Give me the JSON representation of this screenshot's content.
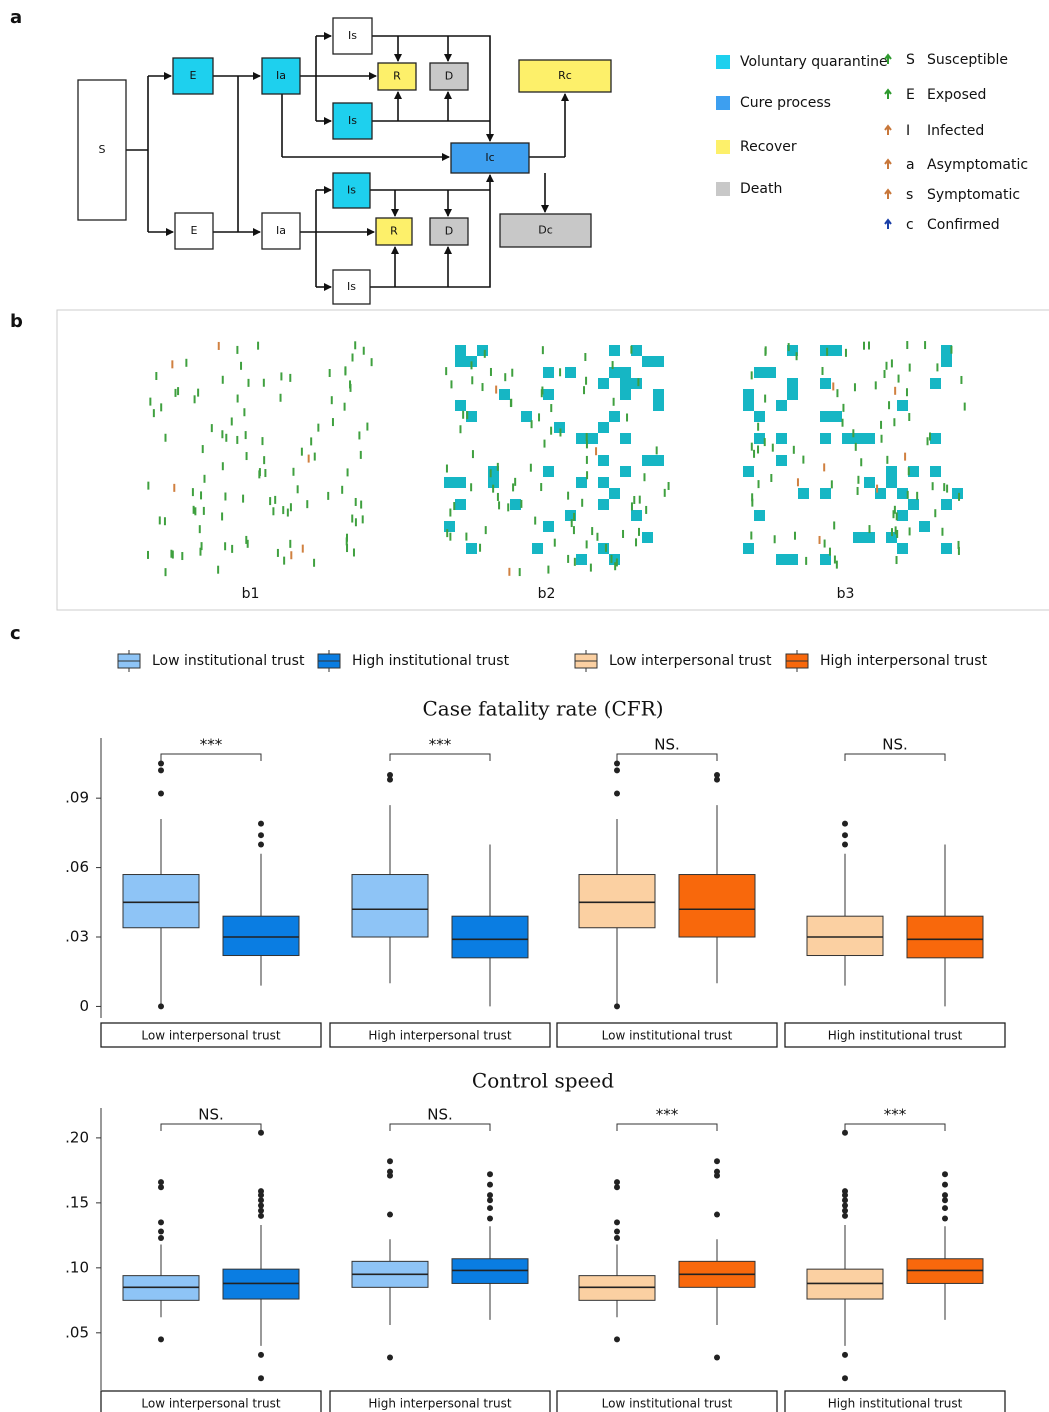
{
  "panel_labels": [
    "a",
    "b",
    "c"
  ],
  "diagram": {
    "nodes": [
      "S",
      "E",
      "E",
      "Ia",
      "Ia",
      "Is",
      "R",
      "D",
      "Is",
      "Ic",
      "Rc",
      "Dc",
      "Is",
      "R",
      "D",
      "Is"
    ],
    "legend": [
      {
        "label": "Voluntary quarantine",
        "color": "#1ed0ee"
      },
      {
        "label": "Cure process",
        "color": "#3d9ff0"
      },
      {
        "label": "Recover",
        "color": "#fdf06a"
      },
      {
        "label": "Death",
        "color": "#c8c8c8"
      }
    ],
    "symbols": [
      {
        "letter": "S",
        "label": "Susceptible",
        "color": "#2e9a2e"
      },
      {
        "letter": "E",
        "label": "Exposed",
        "color": "#2e9a2e"
      },
      {
        "letter": "I",
        "label": "Infected",
        "color": "#c8773a"
      },
      {
        "letter": "a",
        "label": "Asymptomatic",
        "color": "#c8773a"
      },
      {
        "letter": "s",
        "label": "Symptomatic",
        "color": "#c8773a"
      },
      {
        "letter": "c",
        "label": "Confirmed",
        "color": "#1a3fa8"
      }
    ]
  },
  "simulation": {
    "labels": [
      "b1",
      "b2",
      "b3"
    ]
  },
  "legend": [
    {
      "name": "Low institutional trust",
      "color": "#8ec4f6"
    },
    {
      "name": "High institutional trust",
      "color": "#0a7de2"
    },
    {
      "name": "Low interpersonal trust",
      "color": "#fbd0a2"
    },
    {
      "name": "High interpersonal trust",
      "color": "#f8680c"
    }
  ],
  "chart_data": [
    {
      "type": "box",
      "title": "Case fatality rate (CFR)",
      "ylim": [
        -0.005,
        0.116
      ],
      "yticks": [
        0,
        {
          "value": 0.03,
          "label": ".03"
        },
        {
          "value": 0.06,
          "label": ".06"
        },
        {
          "value": 0.09,
          "label": ".09"
        }
      ],
      "groups": [
        {
          "label": "Low interpersonal trust",
          "significance": "***",
          "boxes": [
            {
              "low": 0,
              "q1": 0.034,
              "median": 0.045,
              "q3": 0.057,
              "high": 0.081,
              "outliers": [
                0,
                0.092,
                0.102,
                0.105
              ]
            },
            {
              "low": 0.009,
              "q1": 0.022,
              "median": 0.03,
              "q3": 0.039,
              "high": 0.066,
              "outliers": [
                0.07,
                0.074,
                0.079
              ]
            }
          ]
        },
        {
          "label": "High interpersonal trust",
          "significance": "***",
          "boxes": [
            {
              "low": 0.01,
              "q1": 0.03,
              "median": 0.042,
              "q3": 0.057,
              "high": 0.087,
              "outliers": [
                0.098,
                0.1
              ]
            },
            {
              "low": 0,
              "q1": 0.021,
              "median": 0.029,
              "q3": 0.039,
              "high": 0.07,
              "outliers": []
            }
          ]
        },
        {
          "label": "Low institutional trust",
          "significance": "NS.",
          "boxes": [
            {
              "low": 0,
              "q1": 0.034,
              "median": 0.045,
              "q3": 0.057,
              "high": 0.081,
              "outliers": [
                0,
                0.092,
                0.102,
                0.105
              ]
            },
            {
              "low": 0.01,
              "q1": 0.03,
              "median": 0.042,
              "q3": 0.057,
              "high": 0.087,
              "outliers": [
                0.098,
                0.1
              ]
            }
          ]
        },
        {
          "label": "High institutional trust",
          "significance": "NS.",
          "boxes": [
            {
              "low": 0.009,
              "q1": 0.022,
              "median": 0.03,
              "q3": 0.039,
              "high": 0.066,
              "outliers": [
                0.07,
                0.074,
                0.079
              ]
            },
            {
              "low": 0,
              "q1": 0.021,
              "median": 0.029,
              "q3": 0.039,
              "high": 0.07,
              "outliers": []
            }
          ]
        }
      ]
    },
    {
      "type": "box",
      "title": "Control speed",
      "ylim": [
        0.006,
        0.223
      ],
      "yticks": [
        {
          "value": 0.05,
          "label": ".05"
        },
        {
          "value": 0.1,
          "label": ".10"
        },
        {
          "value": 0.15,
          "label": ".15"
        },
        {
          "value": 0.2,
          "label": ".20"
        }
      ],
      "groups": [
        {
          "label": "Low interpersonal trust",
          "significance": "NS.",
          "boxes": [
            {
              "low": 0.062,
              "q1": 0.075,
              "median": 0.085,
              "q3": 0.094,
              "high": 0.118,
              "outliers": [
                0.045,
                0.123,
                0.128,
                0.135,
                0.162,
                0.166
              ]
            },
            {
              "low": 0.04,
              "q1": 0.076,
              "median": 0.088,
              "q3": 0.099,
              "high": 0.133,
              "outliers": [
                0.015,
                0.033,
                0.14,
                0.144,
                0.148,
                0.152,
                0.156,
                0.159,
                0.204
              ]
            }
          ]
        },
        {
          "label": "High interpersonal trust",
          "significance": "NS.",
          "boxes": [
            {
              "low": 0.056,
              "q1": 0.085,
              "median": 0.095,
              "q3": 0.105,
              "high": 0.122,
              "outliers": [
                0.031,
                0.141,
                0.171,
                0.174,
                0.182
              ]
            },
            {
              "low": 0.06,
              "q1": 0.088,
              "median": 0.098,
              "q3": 0.107,
              "high": 0.132,
              "outliers": [
                0.138,
                0.146,
                0.152,
                0.156,
                0.164,
                0.172
              ]
            }
          ]
        },
        {
          "label": "Low institutional trust",
          "significance": "***",
          "boxes": [
            {
              "low": 0.062,
              "q1": 0.075,
              "median": 0.085,
              "q3": 0.094,
              "high": 0.118,
              "outliers": [
                0.045,
                0.123,
                0.128,
                0.135,
                0.162,
                0.166
              ]
            },
            {
              "low": 0.056,
              "q1": 0.085,
              "median": 0.095,
              "q3": 0.105,
              "high": 0.122,
              "outliers": [
                0.031,
                0.141,
                0.171,
                0.174,
                0.182
              ]
            }
          ]
        },
        {
          "label": "High institutional trust",
          "significance": "***",
          "boxes": [
            {
              "low": 0.04,
              "q1": 0.076,
              "median": 0.088,
              "q3": 0.099,
              "high": 0.133,
              "outliers": [
                0.015,
                0.033,
                0.14,
                0.144,
                0.148,
                0.152,
                0.156,
                0.159,
                0.204
              ]
            },
            {
              "low": 0.06,
              "q1": 0.088,
              "median": 0.098,
              "q3": 0.107,
              "high": 0.132,
              "outliers": [
                0.138,
                0.146,
                0.152,
                0.156,
                0.164,
                0.172
              ]
            }
          ]
        }
      ]
    }
  ]
}
